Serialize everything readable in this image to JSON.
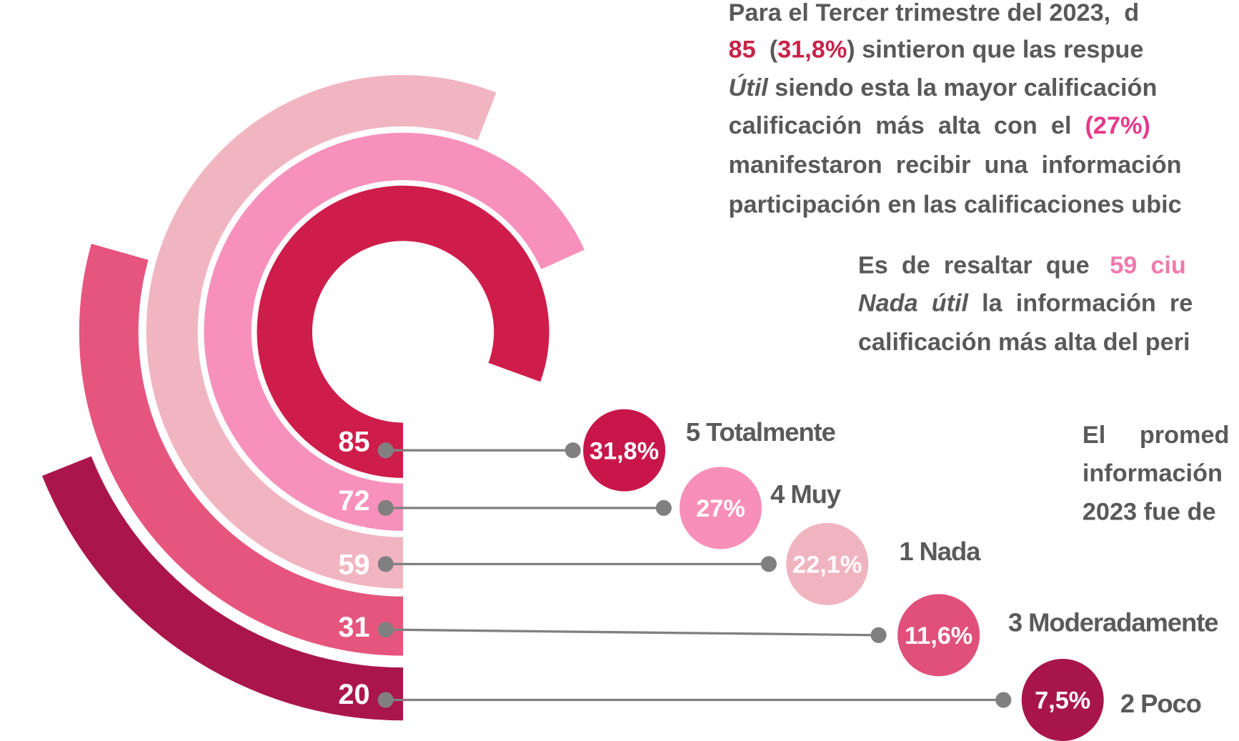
{
  "chart_data": {
    "type": "radial_bar",
    "categories": [
      "5 Totalmente",
      "4 Muy",
      "1 Nada",
      "3 Moderadamente",
      "2 Poco"
    ],
    "values": [
      85,
      72,
      59,
      31,
      20
    ],
    "colors": [
      "#cf1d4b",
      "#f791bb",
      "#f1b5c2",
      "#e6557e",
      "#aa164b"
    ],
    "percentages": [
      31.8,
      27,
      22.1,
      11.6,
      7.5
    ],
    "percentage_labels": [
      "31,8%",
      "27%",
      "22,1%",
      "11,6%",
      "7,5%"
    ],
    "percentage_colors": [
      "#c8164a",
      "#f78fb8",
      "#f0b4c0",
      "#e0507a",
      "#a8154a"
    ]
  },
  "text_blocks": [
    {
      "lines": [
        [
          {
            "text": "Para el Tercer trimestre del 2023,  d"
          }
        ],
        [
          {
            "text": "85",
            "color": "#c8234a"
          },
          {
            "text": "  ("
          },
          {
            "text": "31,8%",
            "color": "#c8234a"
          },
          {
            "text": ") sintieron que las respue"
          }
        ],
        [
          {
            "text": "Útil",
            "italic": true
          },
          {
            "text": " siendo esta la mayor calificación "
          }
        ],
        [
          {
            "text": "calificación  más  alta  con  el  "
          },
          {
            "text": "(27%)",
            "color": "#e8388a"
          }
        ],
        [
          {
            "text": "manifestaron  recibir  una  información"
          }
        ],
        [
          {
            "text": "participación en las calificaciones ubic"
          }
        ]
      ]
    },
    {
      "lines": [
        [
          {
            "text": "Es  de  resaltar  que   "
          },
          {
            "text": "59  ciu",
            "color": "#f07aae"
          }
        ],
        [
          {
            "text": "Nada  útil",
            "italic": true
          },
          {
            "text": "  la  información  re"
          }
        ],
        [
          {
            "text": "calificación más alta del peri"
          }
        ]
      ]
    },
    {
      "lines": [
        [
          {
            "text": "El     promed"
          }
        ],
        [
          {
            "text": "información"
          }
        ],
        [
          {
            "text": "2023 fue de"
          }
        ]
      ]
    }
  ]
}
